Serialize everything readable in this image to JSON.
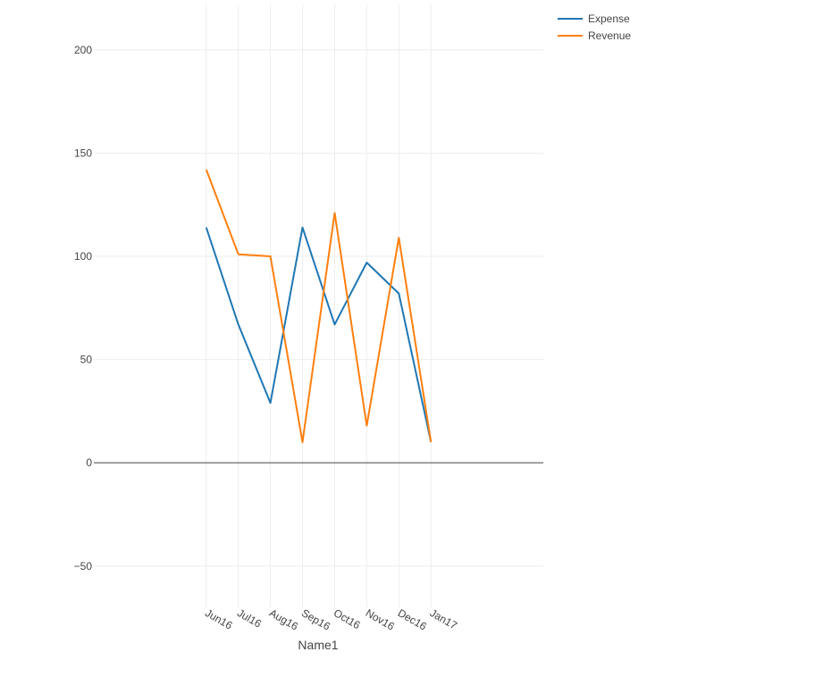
{
  "chart_data": {
    "type": "line",
    "title": "",
    "xlabel": "Name1",
    "ylabel": "",
    "categories": [
      "Jun16",
      "Jul16",
      "Aug16",
      "Sep16",
      "Oct16",
      "Nov16",
      "Dec16",
      "Jan17"
    ],
    "xlim": [
      -3.5,
      10.5
    ],
    "ylim": [
      -70,
      222
    ],
    "yticks": [
      -50,
      0,
      50,
      100,
      150,
      200
    ],
    "ytick_labels": [
      "−50",
      "0",
      "50",
      "100",
      "150",
      "200"
    ],
    "grid": true,
    "legend_position": "top-right",
    "series": [
      {
        "name": "Expense",
        "color": "#1f77b4",
        "values": [
          114,
          67,
          29,
          114,
          67,
          97,
          82,
          10
        ]
      },
      {
        "name": "Revenue",
        "color": "#ff7f0e",
        "values": [
          142,
          101,
          100,
          10,
          121,
          18,
          109,
          10
        ]
      }
    ]
  }
}
